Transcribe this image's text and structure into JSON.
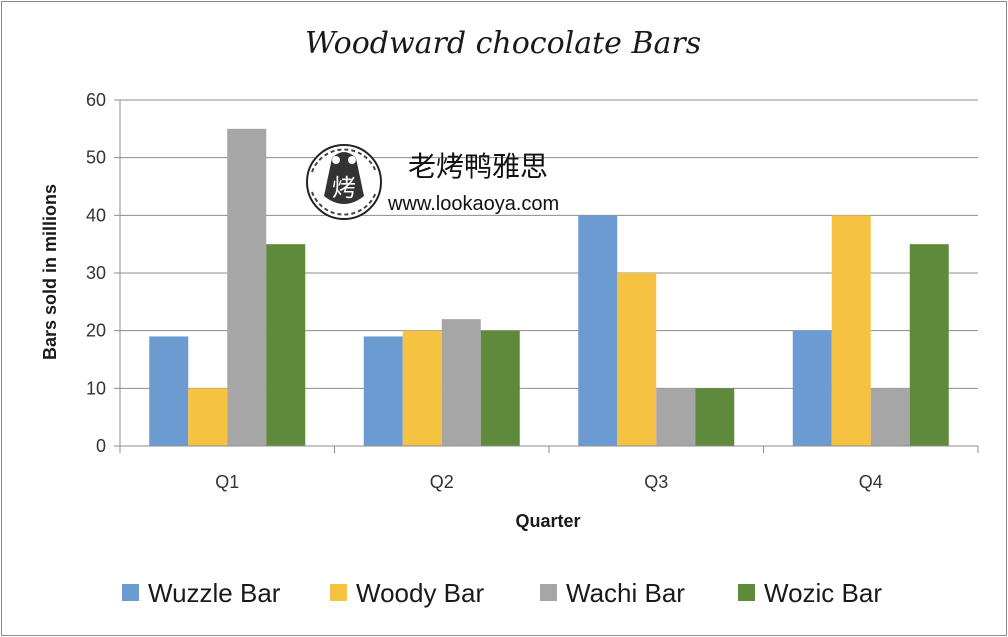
{
  "chart_data": {
    "type": "bar",
    "title": "Woodward chocolate Bars",
    "xlabel": "Quarter",
    "ylabel": "Bars sold in millions",
    "categories": [
      "Q1",
      "Q2",
      "Q3",
      "Q4"
    ],
    "ylim": [
      0,
      60
    ],
    "yticks": [
      0,
      10,
      20,
      30,
      40,
      50,
      60
    ],
    "grid": true,
    "legend_position": "bottom",
    "series": [
      {
        "name": "Wuzzle Bar",
        "color": "#6b9bd1",
        "values": [
          19,
          19,
          40,
          20
        ]
      },
      {
        "name": "Woody Bar",
        "color": "#f5c242",
        "values": [
          10,
          20,
          30,
          40
        ]
      },
      {
        "name": "Wachi Bar",
        "color": "#a6a6a6",
        "values": [
          55,
          22,
          10,
          10
        ]
      },
      {
        "name": "Wozic Bar",
        "color": "#5f8a3c",
        "values": [
          35,
          20,
          10,
          35
        ]
      }
    ]
  },
  "watermark": {
    "text": "老烤鸭雅思",
    "url": "www.lookaoya.com",
    "logo_char": "烤"
  }
}
